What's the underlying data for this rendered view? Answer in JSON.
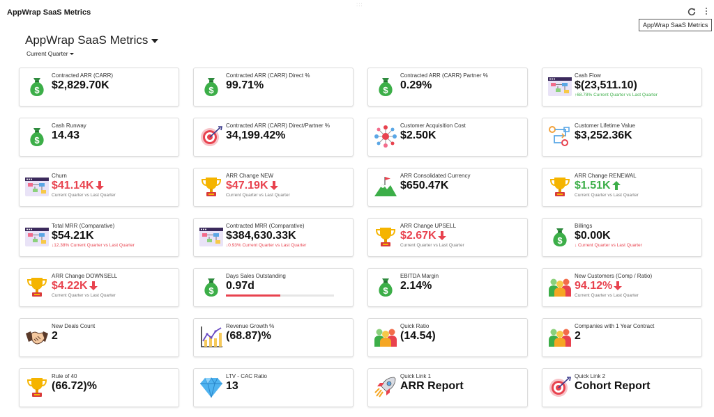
{
  "app": {
    "title": "AppWrap SaaS Metrics",
    "tooltip": "AppWrap SaaS Metrics"
  },
  "dashboard": {
    "title": "AppWrap SaaS Metrics",
    "period": "Current Quarter"
  },
  "colors": {
    "red": "#e8424e",
    "green": "#3cae48",
    "border": "#dcdcdc"
  },
  "cards": [
    {
      "icon": "money-bag-icon",
      "label": "Contracted ARR (CARR)",
      "value": "$2,829.70K"
    },
    {
      "icon": "money-bag-icon",
      "label": "Contracted ARR (CARR) Direct %",
      "value": "99.71%"
    },
    {
      "icon": "money-bag-icon",
      "label": "Contracted ARR (CARR) Partner %",
      "value": "0.29%"
    },
    {
      "icon": "flowchart-icon",
      "label": "Cash Flow",
      "value": "$(23,511.10)",
      "sub": "↑68.78% Current Quarter vs Last Quarter",
      "sub_color": "green"
    },
    {
      "icon": "money-bag-icon",
      "label": "Cash Runway",
      "value": "14.43"
    },
    {
      "icon": "target-icon",
      "label": "Contracted ARR (CARR) Direct/Partner %",
      "value": "34,199.42%"
    },
    {
      "icon": "network-icon",
      "label": "Customer Acquisition Cost",
      "value": "$2.50K"
    },
    {
      "icon": "workflow-icon",
      "label": "Customer Lifetime Value",
      "value": "$3,252.36K"
    },
    {
      "icon": "flowchart-icon",
      "label": "Churn",
      "value": "$41.14K",
      "value_color": "red",
      "arrow": "down",
      "sub": "Current Quarter vs Last Quarter"
    },
    {
      "icon": "trophy-icon",
      "label": "ARR Change NEW",
      "value": "$47.19K",
      "value_color": "red",
      "arrow": "down",
      "sub": "Current Quarter vs Last Quarter"
    },
    {
      "icon": "mountain-flag-icon",
      "label": "ARR Consolidated Currency",
      "value": "$650.47K"
    },
    {
      "icon": "trophy-icon",
      "label": "ARR Change RENEWAL",
      "value": "$1.51K",
      "value_color": "green",
      "arrow": "up",
      "sub": "Current Quarter vs Last Quarter"
    },
    {
      "icon": "flowchart-icon",
      "label": "Total MRR (Comparative)",
      "value": "$54.21K",
      "sub": "↓12.38% Current Quarter vs Last Quarter",
      "sub_color": "red"
    },
    {
      "icon": "flowchart-icon",
      "label": "Contracted MRR (Comparative)",
      "value": "$384,630.33K",
      "sub": "↓0.93% Current Quarter vs Last Quarter",
      "sub_color": "red"
    },
    {
      "icon": "trophy-icon",
      "label": "ARR Change UPSELL",
      "value": "$2.67K",
      "value_color": "red",
      "arrow": "down",
      "sub": "Current Quarter vs Last Quarter"
    },
    {
      "icon": "money-bag-icon",
      "label": "Billings",
      "value": "$0.00K",
      "sub": "↓ Current Quarter vs Last Quarter",
      "sub_color": "red"
    },
    {
      "icon": "trophy-icon",
      "label": "ARR Change DOWNSELL",
      "value": "$4.22K",
      "value_color": "red",
      "arrow": "down",
      "sub": "Current Quarter vs Last Quarter"
    },
    {
      "icon": "money-bag-icon",
      "label": "Days Sales Outstanding",
      "value": "0.97d",
      "progress": 0.5
    },
    {
      "icon": "money-bag-icon",
      "label": "EBITDA Margin",
      "value": "2.14%"
    },
    {
      "icon": "people-icon",
      "label": "New Customers (Comp / Ratio)",
      "value": "94.12%",
      "value_color": "red",
      "arrow": "down",
      "sub": "Current Quarter vs Last Quarter"
    },
    {
      "icon": "handshake-icon",
      "label": "New Deals Count",
      "value": "2"
    },
    {
      "icon": "growth-chart-icon",
      "label": "Revenue Growth %",
      "value": "(68.87)%"
    },
    {
      "icon": "people-icon",
      "label": "Quick Ratio",
      "value": "(14.54)"
    },
    {
      "icon": "people-icon",
      "label": "Companies with 1 Year Contract",
      "value": "2"
    },
    {
      "icon": "trophy-icon",
      "label": "Rule of 40",
      "value": "(66.72)%"
    },
    {
      "icon": "diamond-icon",
      "label": "LTV - CAC Ratio",
      "value": "13"
    },
    {
      "icon": "rocket-icon",
      "label": "Quick Link 1",
      "value": "ARR Report",
      "big": true
    },
    {
      "icon": "target-icon",
      "label": "Quick Link 2",
      "value": "Cohort Report",
      "big": true
    }
  ]
}
